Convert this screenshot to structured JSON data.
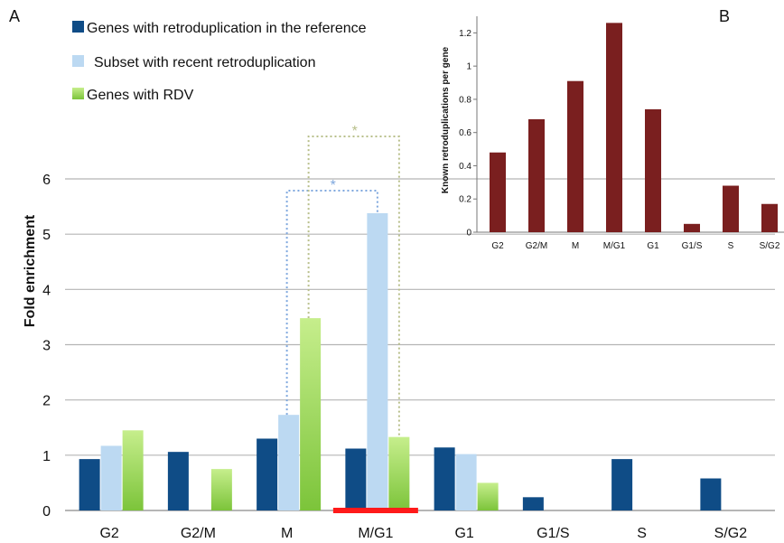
{
  "panel_a_label": "A",
  "panel_b_label": "B",
  "significance_mark": "*",
  "colors": {
    "reference": "#0f4c86",
    "recent": "#bcd9f2",
    "rdv_top": "#c6ee8c",
    "rdv_bottom": "#7cc43a",
    "inset_bar": "#7a1f1f",
    "highlight": "#ff1a1a",
    "bracket_blue": "#7ea7de",
    "bracket_olive": "#b8bf8a",
    "grid": "#b5b5b5"
  },
  "chart_data": [
    {
      "type": "bar",
      "panel": "A",
      "ylabel": "Fold enrichment",
      "xlabel": "",
      "ylim": [
        0,
        6
      ],
      "yticks": [
        0,
        1,
        2,
        3,
        4,
        5,
        6
      ],
      "grid": true,
      "legend_position": "top-left",
      "categories": [
        "G2",
        "G2/M",
        "M",
        "M/G1",
        "G1",
        "G1/S",
        "S",
        "S/G2"
      ],
      "series": [
        {
          "name": "Genes with retroduplication in the reference",
          "values": [
            0.93,
            1.06,
            1.3,
            1.12,
            1.14,
            0.24,
            0.93,
            0.58
          ]
        },
        {
          "name": "Subset with recent retroduplication",
          "values": [
            1.17,
            null,
            1.73,
            5.38,
            1.02,
            null,
            null,
            null
          ]
        },
        {
          "name": "Genes with RDV",
          "values": [
            1.45,
            0.75,
            3.48,
            1.33,
            0.5,
            null,
            null,
            null
          ]
        }
      ],
      "highlighted_category": "M/G1",
      "significance": [
        {
          "between": [
            "M",
            "M/G1"
          ],
          "series": "Subset with recent retroduplication",
          "mark": "*"
        },
        {
          "between": [
            "M",
            "M/G1"
          ],
          "series": "Genes with RDV",
          "mark": "*"
        }
      ]
    },
    {
      "type": "bar",
      "panel": "B",
      "ylabel": "Known retroduplications per gene",
      "xlabel": "",
      "ylim": [
        0,
        1.3
      ],
      "yticks": [
        "0",
        "0.2",
        "0.4",
        "0.6",
        "0.8",
        "1",
        "1.2"
      ],
      "grid": false,
      "categories": [
        "G2",
        "G2/M",
        "M",
        "M/G1",
        "G1",
        "G1/S",
        "S",
        "S/G2"
      ],
      "values": [
        0.48,
        0.68,
        0.91,
        1.26,
        0.74,
        0.05,
        0.28,
        0.17
      ]
    }
  ]
}
